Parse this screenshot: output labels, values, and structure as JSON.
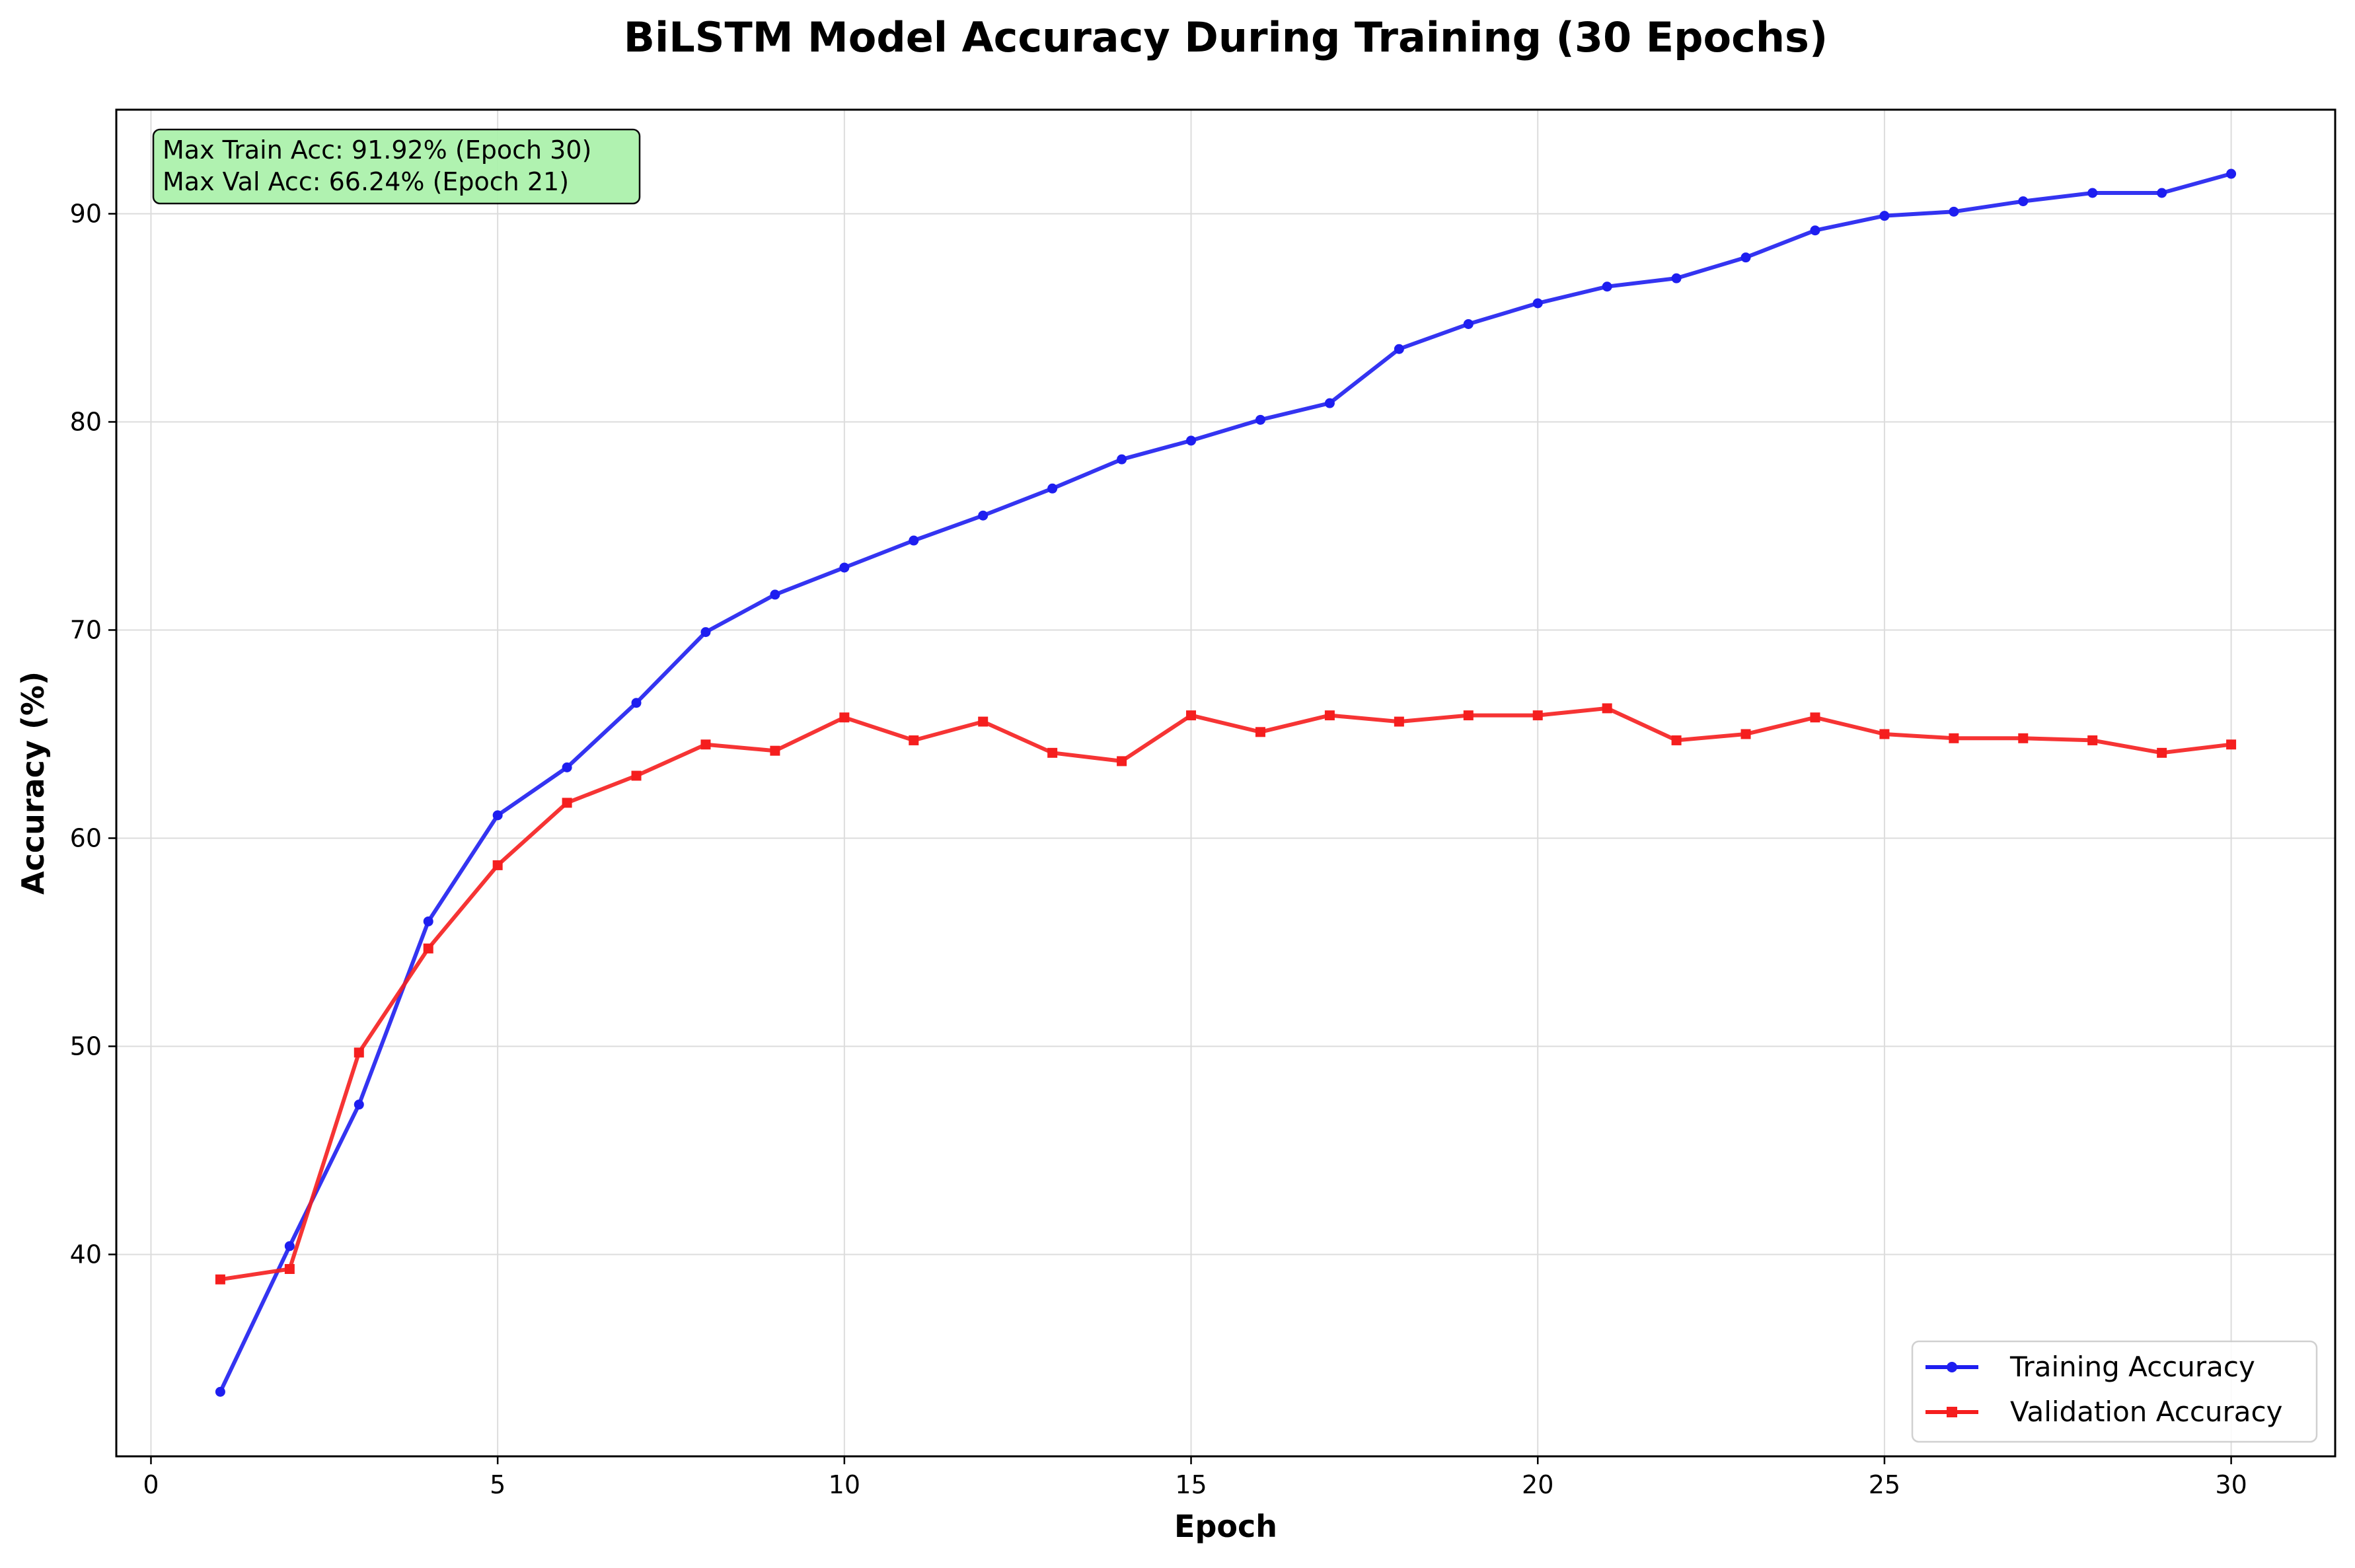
{
  "chart_data": {
    "type": "line",
    "title": "BiLSTM Model Accuracy During Training (30 Epochs)",
    "xlabel": "Epoch",
    "ylabel": "Accuracy (%)",
    "xlim": [
      -0.5,
      31.5
    ],
    "ylim": [
      30.3,
      95.0
    ],
    "xticks": [
      0,
      5,
      10,
      15,
      20,
      25,
      30
    ],
    "yticks": [
      40,
      50,
      60,
      70,
      80,
      90
    ],
    "grid": true,
    "legend_position": "lower-right",
    "annotation": {
      "lines": [
        "Max Train Acc: 91.92% (Epoch 30)",
        "Max Val Acc: 66.24% (Epoch 21)"
      ],
      "position": "top-left",
      "background": "#acf2ac"
    },
    "x": [
      1,
      2,
      3,
      4,
      5,
      6,
      7,
      8,
      9,
      10,
      11,
      12,
      13,
      14,
      15,
      16,
      17,
      18,
      19,
      20,
      21,
      22,
      23,
      24,
      25,
      26,
      27,
      28,
      29,
      30
    ],
    "series": [
      {
        "name": "Training Accuracy",
        "color": "#1e1ef0",
        "marker": "circle",
        "values": [
          33.4,
          40.4,
          47.2,
          56.0,
          61.1,
          63.4,
          66.5,
          69.9,
          71.7,
          73.0,
          74.3,
          75.5,
          76.8,
          78.2,
          79.1,
          80.1,
          80.9,
          83.5,
          84.7,
          85.7,
          86.5,
          86.9,
          87.9,
          89.2,
          89.9,
          90.1,
          90.6,
          91.0,
          91.0,
          91.92
        ]
      },
      {
        "name": "Validation Accuracy",
        "color": "#f51e1e",
        "marker": "square",
        "values": [
          38.8,
          39.3,
          49.7,
          54.7,
          58.7,
          61.7,
          63.0,
          64.5,
          64.2,
          65.8,
          64.7,
          65.6,
          64.1,
          63.7,
          65.9,
          65.1,
          65.9,
          65.6,
          65.9,
          65.9,
          66.24,
          64.7,
          65.0,
          65.8,
          65.0,
          64.8,
          64.8,
          64.7,
          64.1,
          64.5
        ]
      }
    ]
  }
}
